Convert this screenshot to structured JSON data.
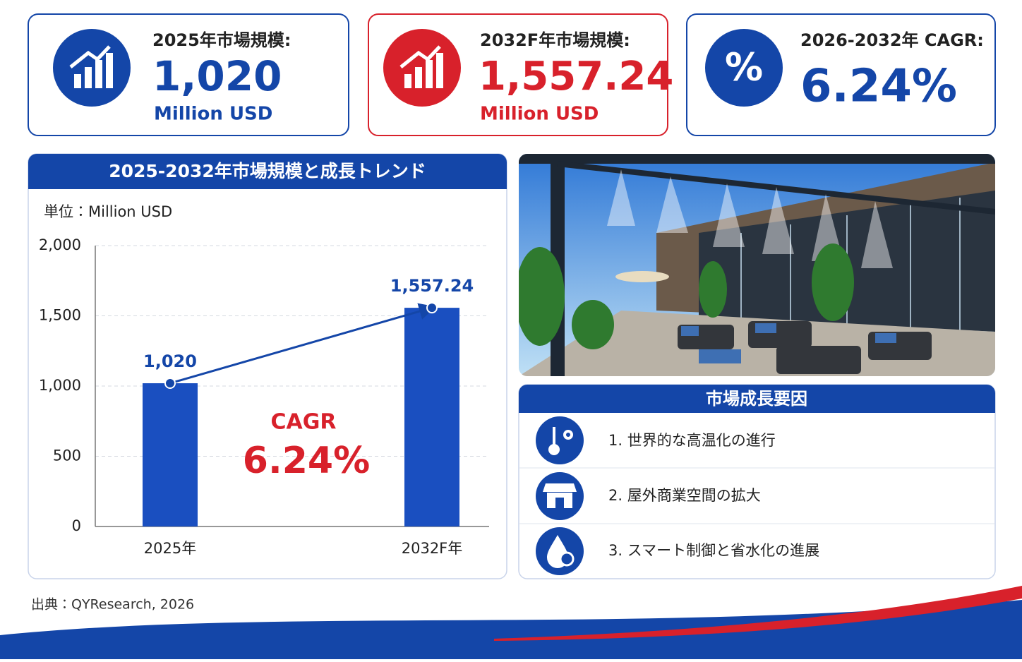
{
  "kpis": [
    {
      "label": "2025年市場規模:",
      "value": "1,020",
      "unit": "Million USD"
    },
    {
      "label": "2032F年市場規模:",
      "value": "1,557.24",
      "unit": "Million USD"
    },
    {
      "label": "2026-2032年 CAGR:",
      "value": "6.24%"
    }
  ],
  "chart_data": {
    "type": "bar",
    "title": "2025-2032年市場規模と成長トレンド",
    "unit_label": "単位：Million USD",
    "categories": [
      "2025年",
      "2032F年"
    ],
    "values": [
      1020,
      1557.24
    ],
    "value_labels": [
      "1,020",
      "1,557.24"
    ],
    "color": "#1a4fc0",
    "ylim": [
      0,
      2000
    ],
    "yticks": [
      0,
      500,
      {
        "value": 1000,
        "label": "1,000"
      },
      {
        "value": 1500,
        "label": "1,500"
      },
      {
        "value": 2000,
        "label": "2,000"
      }
    ],
    "grid": true,
    "annotation": {
      "label": "CAGR",
      "value": "6.24%"
    }
  },
  "factors": {
    "title": "市場成長要因",
    "items": [
      "1. 世界的な高温化の進行",
      "2. 屋外商業空間の拡大",
      "3. スマート制御と省水化の進展"
    ]
  },
  "source": "出典：QYResearch, 2026"
}
